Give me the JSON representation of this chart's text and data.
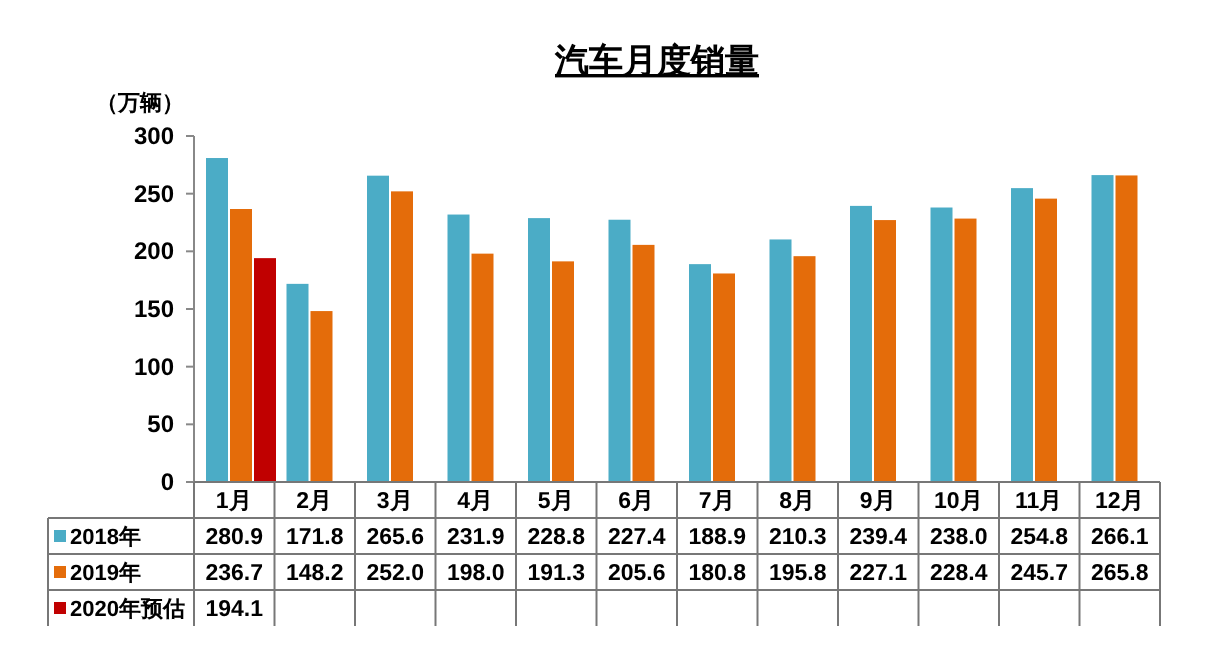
{
  "chart_data": {
    "type": "bar",
    "title": "汽车月度销量",
    "ylabel": "（万辆）",
    "categories": [
      "1月",
      "2月",
      "3月",
      "4月",
      "5月",
      "6月",
      "7月",
      "8月",
      "9月",
      "10月",
      "11月",
      "12月"
    ],
    "ylim": [
      0,
      300
    ],
    "yticks": [
      0,
      50,
      100,
      150,
      200,
      250,
      300
    ],
    "grid": false,
    "legend": "bottom",
    "series": [
      {
        "name": "2018年",
        "color": "#4bacc6",
        "values": [
          280.9,
          171.8,
          265.6,
          231.9,
          228.8,
          227.4,
          188.9,
          210.3,
          239.4,
          238.0,
          254.8,
          266.1
        ],
        "value_labels": [
          "280.9",
          "171.8",
          "265.6",
          "231.9",
          "228.8",
          "227.4",
          "188.9",
          "210.3",
          "239.4",
          "238.0",
          "254.8",
          "266.1"
        ]
      },
      {
        "name": "2019年",
        "color": "#e46c0a",
        "values": [
          236.7,
          148.2,
          252.0,
          198.0,
          191.3,
          205.6,
          180.8,
          195.8,
          227.1,
          228.4,
          245.7,
          265.8
        ],
        "value_labels": [
          "236.7",
          "148.2",
          "252.0",
          "198.0",
          "191.3",
          "205.6",
          "180.8",
          "195.8",
          "227.1",
          "228.4",
          "245.7",
          "265.8"
        ]
      },
      {
        "name": "2020年预估",
        "color": "#c00000",
        "values": [
          194.1,
          null,
          null,
          null,
          null,
          null,
          null,
          null,
          null,
          null,
          null,
          null
        ],
        "value_labels": [
          "194.1",
          null,
          null,
          null,
          null,
          null,
          null,
          null,
          null,
          null,
          null,
          null
        ]
      }
    ]
  }
}
